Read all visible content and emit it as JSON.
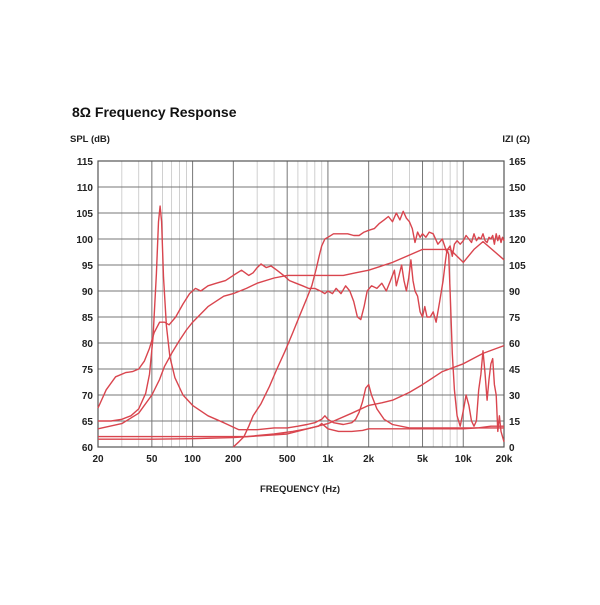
{
  "chart_data": {
    "type": "line",
    "title": "8Ω Frequency Response",
    "ylabel_left": "SPL (dB)",
    "ylabel_right": "IZI (Ω)",
    "xlabel": "FREQUENCY (Hz)",
    "x_scale": "log",
    "xlim": [
      20,
      20000
    ],
    "ylim_left": [
      60,
      115
    ],
    "ylim_right": [
      0,
      165
    ],
    "x_ticks": [
      {
        "value": 20,
        "label": "20"
      },
      {
        "value": 50,
        "label": "50"
      },
      {
        "value": 100,
        "label": "100"
      },
      {
        "value": 200,
        "label": "200"
      },
      {
        "value": 500,
        "label": "500"
      },
      {
        "value": 1000,
        "label": "1k"
      },
      {
        "value": 2000,
        "label": "2k"
      },
      {
        "value": 5000,
        "label": "5k"
      },
      {
        "value": 10000,
        "label": "10k"
      },
      {
        "value": 20000,
        "label": "20k"
      }
    ],
    "y_ticks_left": [
      "60",
      "65",
      "70",
      "75",
      "80",
      "85",
      "90",
      "95",
      "100",
      "105",
      "110",
      "115"
    ],
    "y_ticks_right": [
      "0",
      "15",
      "30",
      "45",
      "60",
      "75",
      "90",
      "105",
      "120",
      "135",
      "150",
      "165"
    ],
    "grid": true,
    "line_color": "#d9454e",
    "series": [
      {
        "axis": "left",
        "values": [
          [
            20,
            67.5
          ],
          [
            23,
            71
          ],
          [
            27,
            73.5
          ],
          [
            32,
            74.3
          ],
          [
            36,
            74.5
          ],
          [
            40,
            75
          ],
          [
            44,
            76.5
          ],
          [
            48,
            79
          ],
          [
            52,
            82
          ],
          [
            57,
            84
          ],
          [
            62,
            84
          ],
          [
            67,
            83.5
          ],
          [
            75,
            85
          ],
          [
            85,
            87.5
          ],
          [
            95,
            89.5
          ],
          [
            105,
            90.5
          ],
          [
            115,
            90
          ],
          [
            130,
            91
          ],
          [
            150,
            91.5
          ],
          [
            175,
            92
          ],
          [
            200,
            93
          ],
          [
            230,
            94
          ],
          [
            260,
            93
          ],
          [
            280,
            93.5
          ],
          [
            300,
            94.5
          ],
          [
            320,
            95.2
          ],
          [
            350,
            94.5
          ],
          [
            380,
            94.8
          ],
          [
            420,
            94
          ],
          [
            470,
            93
          ],
          [
            520,
            92
          ],
          [
            580,
            91.5
          ],
          [
            650,
            91
          ],
          [
            720,
            90.5
          ],
          [
            800,
            90.5
          ],
          [
            880,
            90
          ],
          [
            950,
            89.5
          ],
          [
            1000,
            90
          ],
          [
            1080,
            89.5
          ],
          [
            1150,
            90.5
          ],
          [
            1250,
            89.5
          ],
          [
            1350,
            91
          ],
          [
            1450,
            90
          ],
          [
            1550,
            88
          ],
          [
            1650,
            85
          ],
          [
            1750,
            84.5
          ],
          [
            1850,
            87
          ],
          [
            1950,
            90
          ],
          [
            2100,
            91
          ],
          [
            2300,
            90.5
          ],
          [
            2500,
            91.5
          ],
          [
            2700,
            90
          ],
          [
            2900,
            92
          ],
          [
            3100,
            94
          ],
          [
            3200,
            91
          ],
          [
            3350,
            93
          ],
          [
            3500,
            95
          ],
          [
            3650,
            92
          ],
          [
            3800,
            90
          ],
          [
            3950,
            92.5
          ],
          [
            4100,
            96
          ],
          [
            4250,
            92
          ],
          [
            4400,
            90
          ],
          [
            4600,
            89
          ],
          [
            4800,
            86
          ],
          [
            5000,
            85
          ],
          [
            5200,
            87
          ],
          [
            5400,
            85
          ],
          [
            5700,
            85
          ],
          [
            6000,
            86
          ],
          [
            6300,
            84
          ],
          [
            6700,
            88
          ],
          [
            7100,
            92
          ],
          [
            7400,
            96
          ],
          [
            7600,
            98
          ],
          [
            7800,
            97
          ],
          [
            8000,
            90
          ],
          [
            8300,
            78
          ],
          [
            8600,
            71
          ],
          [
            9000,
            66
          ],
          [
            9500,
            64
          ],
          [
            10000,
            67
          ],
          [
            10500,
            70
          ],
          [
            11000,
            68
          ],
          [
            11500,
            65
          ],
          [
            12000,
            64
          ],
          [
            12500,
            65
          ],
          [
            13000,
            71
          ],
          [
            13500,
            74
          ],
          [
            14000,
            78.5
          ],
          [
            14500,
            74
          ],
          [
            15000,
            69
          ],
          [
            15500,
            73
          ],
          [
            16000,
            76
          ],
          [
            16500,
            77
          ],
          [
            17000,
            72
          ],
          [
            17500,
            70
          ],
          [
            18000,
            63
          ],
          [
            18500,
            66
          ],
          [
            19000,
            63
          ],
          [
            20000,
            61
          ]
        ]
      },
      {
        "axis": "left",
        "values": [
          [
            20,
            63.5
          ],
          [
            30,
            64.5
          ],
          [
            40,
            66.5
          ],
          [
            50,
            70
          ],
          [
            57,
            73
          ],
          [
            62,
            75.5
          ],
          [
            70,
            78
          ],
          [
            80,
            80.5
          ],
          [
            90,
            82.5
          ],
          [
            100,
            84
          ],
          [
            130,
            87
          ],
          [
            170,
            89
          ],
          [
            200,
            89.5
          ],
          [
            250,
            90.5
          ],
          [
            300,
            91.5
          ],
          [
            400,
            92.5
          ],
          [
            500,
            93
          ],
          [
            650,
            93
          ],
          [
            800,
            93
          ],
          [
            1000,
            93
          ],
          [
            1300,
            93
          ],
          [
            1600,
            93.5
          ],
          [
            2000,
            94
          ],
          [
            3000,
            95.5
          ],
          [
            5000,
            98
          ],
          [
            8000,
            98
          ],
          [
            10000,
            95.5
          ],
          [
            12000,
            98
          ],
          [
            14000,
            99.5
          ],
          [
            20000,
            96
          ]
        ]
      },
      {
        "axis": "left",
        "values": [
          [
            20,
            61.5
          ],
          [
            35,
            61.5
          ],
          [
            45,
            61.5
          ],
          [
            50,
            61.5
          ],
          [
            100,
            61.6
          ],
          [
            200,
            61.8
          ],
          [
            500,
            62.5
          ],
          [
            1000,
            64.5
          ],
          [
            1500,
            66.5
          ],
          [
            2000,
            68
          ],
          [
            2500,
            68.5
          ],
          [
            3000,
            69
          ],
          [
            4000,
            70.5
          ],
          [
            5000,
            72
          ],
          [
            7000,
            74.5
          ],
          [
            10000,
            76
          ],
          [
            14000,
            78
          ],
          [
            20000,
            79.5
          ]
        ]
      },
      {
        "axis": "left",
        "values": [
          [
            20,
            62
          ],
          [
            100,
            62
          ],
          [
            250,
            62
          ],
          [
            400,
            62.5
          ],
          [
            550,
            63
          ],
          [
            700,
            63.5
          ],
          [
            850,
            64
          ],
          [
            900,
            64.5
          ],
          [
            950,
            64
          ],
          [
            1000,
            63.5
          ],
          [
            1200,
            63
          ],
          [
            1500,
            63
          ],
          [
            1800,
            63.2
          ],
          [
            2000,
            63.5
          ],
          [
            3000,
            63.5
          ],
          [
            5000,
            63.5
          ],
          [
            8000,
            63.5
          ],
          [
            10000,
            63.5
          ],
          [
            13000,
            63.7
          ],
          [
            16000,
            64
          ],
          [
            20000,
            64
          ]
        ]
      },
      {
        "axis": "right",
        "values": [
          [
            20,
            15
          ],
          [
            25,
            15
          ],
          [
            30,
            16
          ],
          [
            35,
            18
          ],
          [
            40,
            22
          ],
          [
            45,
            31
          ],
          [
            48,
            42
          ],
          [
            51,
            63
          ],
          [
            54,
            100
          ],
          [
            56,
            130
          ],
          [
            57.5,
            139
          ],
          [
            59,
            130
          ],
          [
            61,
            98
          ],
          [
            64,
            70
          ],
          [
            68,
            52
          ],
          [
            74,
            40
          ],
          [
            85,
            30
          ],
          [
            100,
            24
          ],
          [
            130,
            18
          ],
          [
            170,
            14
          ],
          [
            220,
            10
          ],
          [
            300,
            10
          ],
          [
            400,
            11
          ],
          [
            500,
            11
          ],
          [
            600,
            12
          ],
          [
            700,
            13
          ],
          [
            800,
            14
          ],
          [
            900,
            16
          ],
          [
            950,
            18
          ],
          [
            1000,
            16
          ],
          [
            1100,
            14
          ],
          [
            1300,
            13
          ],
          [
            1500,
            14
          ],
          [
            1600,
            16
          ],
          [
            1700,
            20
          ],
          [
            1800,
            26
          ],
          [
            1900,
            34
          ],
          [
            2000,
            36
          ],
          [
            2100,
            30
          ],
          [
            2300,
            22
          ],
          [
            2600,
            16
          ],
          [
            3000,
            13
          ],
          [
            4000,
            11
          ],
          [
            6000,
            11
          ],
          [
            10000,
            11
          ],
          [
            15000,
            11
          ],
          [
            20000,
            11
          ]
        ]
      },
      {
        "axis": "right",
        "values": [
          [
            200,
            0
          ],
          [
            220,
            3
          ],
          [
            240,
            6
          ],
          [
            260,
            12
          ],
          [
            280,
            18
          ],
          [
            320,
            25
          ],
          [
            370,
            35
          ],
          [
            420,
            45
          ],
          [
            480,
            55
          ],
          [
            550,
            66
          ],
          [
            620,
            76
          ],
          [
            700,
            86
          ],
          [
            760,
            93
          ],
          [
            820,
            103
          ],
          [
            860,
            110
          ],
          [
            900,
            116
          ],
          [
            950,
            120
          ],
          [
            1000,
            121
          ],
          [
            1100,
            123
          ],
          [
            1250,
            123
          ],
          [
            1400,
            123
          ],
          [
            1550,
            122
          ],
          [
            1700,
            122
          ],
          [
            1850,
            124
          ],
          [
            2000,
            125
          ],
          [
            2200,
            126
          ],
          [
            2400,
            129
          ],
          [
            2600,
            131
          ],
          [
            2800,
            133
          ],
          [
            3000,
            130
          ],
          [
            3200,
            135
          ],
          [
            3400,
            131
          ],
          [
            3600,
            136
          ],
          [
            3800,
            132
          ],
          [
            4000,
            130
          ],
          [
            4200,
            126
          ],
          [
            4400,
            118
          ],
          [
            4600,
            124
          ],
          [
            4800,
            121
          ],
          [
            5000,
            123
          ],
          [
            5300,
            121
          ],
          [
            5600,
            124
          ],
          [
            6000,
            123
          ],
          [
            6500,
            117
          ],
          [
            7000,
            120
          ],
          [
            7500,
            113
          ],
          [
            8000,
            116
          ],
          [
            8300,
            110
          ],
          [
            8600,
            117
          ],
          [
            9000,
            119
          ],
          [
            9500,
            117
          ],
          [
            10000,
            119
          ],
          [
            10500,
            122
          ],
          [
            11000,
            120
          ],
          [
            11500,
            118
          ],
          [
            12000,
            123
          ],
          [
            12500,
            119
          ],
          [
            13000,
            121
          ],
          [
            13500,
            120
          ],
          [
            14000,
            123
          ],
          [
            14500,
            119
          ],
          [
            15000,
            118
          ],
          [
            15500,
            121
          ],
          [
            16000,
            120
          ],
          [
            16500,
            122
          ],
          [
            17000,
            117
          ],
          [
            17500,
            123
          ],
          [
            18000,
            119
          ],
          [
            18500,
            122
          ],
          [
            19000,
            118
          ],
          [
            19500,
            121
          ],
          [
            20000,
            119
          ]
        ]
      }
    ]
  }
}
